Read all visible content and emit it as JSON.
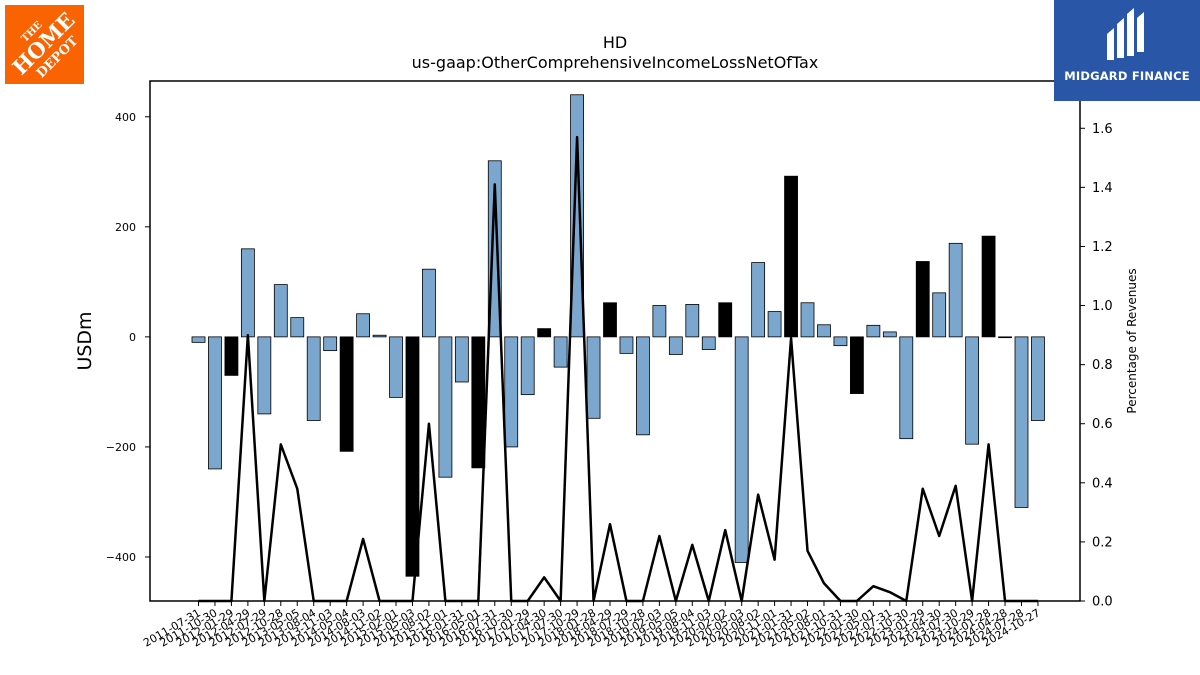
{
  "brand": {
    "left_logo": "THE HOME DEPOT",
    "right_logo": "MIDGARD FINANCE",
    "colors": {
      "home_depot_orange": "#f96302",
      "midgard_blue": "#2a56a8"
    }
  },
  "chart_data": {
    "type": "bar",
    "title": "HD",
    "subtitle": "us-gaap:OtherComprehensiveIncomeLossNetOfTax",
    "ylabel": "USDm",
    "y2label": "Percentage of Revenues",
    "ylim": [
      -480,
      465
    ],
    "y2lim": [
      0,
      1.76
    ],
    "yticks": [
      -400,
      -200,
      0,
      200,
      400
    ],
    "y2ticks": [
      0.0,
      0.2,
      0.4,
      0.6,
      0.8,
      1.0,
      1.2,
      1.4,
      1.6
    ],
    "y2ticks_labels": [
      "0.0",
      "0.2",
      "0.4",
      "0.6",
      "0.8",
      "1.0",
      "1.2",
      "1.4",
      "1.6"
    ],
    "grid": false,
    "colors": {
      "quarter_bar": "#7ba7cf",
      "annual_bar": "#000000",
      "line": "#000000"
    },
    "x_tick_labels": [
      "2011-07-31",
      "2011-10-30",
      "2012-01-29",
      "2012-04-29",
      "2012-07-29",
      "2012-10-28",
      "2013-05-05",
      "2013-08-04",
      "2013-11-03",
      "2014-05-04",
      "2014-08-03",
      "2014-11-02",
      "2015-02-01",
      "2015-05-03",
      "2015-08-02",
      "2015-11-01",
      "2016-01-31",
      "2016-05-01",
      "2016-07-31",
      "2016-10-30",
      "2017-01-29",
      "2017-04-30",
      "2017-07-30",
      "2017-10-29",
      "2018-01-28",
      "2018-04-29",
      "2018-07-29",
      "2018-10-28",
      "2019-02-03",
      "2019-05-05",
      "2019-08-04",
      "2019-11-03",
      "2020-02-02",
      "2020-05-03",
      "2020-08-02",
      "2020-11-01",
      "2021-01-31",
      "2021-05-02",
      "2021-08-01",
      "2021-10-31",
      "2022-01-30",
      "2022-05-01",
      "2022-07-31",
      "2022-10-30",
      "2023-01-29",
      "2023-04-30",
      "2023-07-30",
      "2023-10-29",
      "2024-01-28",
      "2024-04-28",
      "2024-07-28",
      "2024-10-27"
    ],
    "values": [
      -10,
      -240,
      -70,
      160,
      -140,
      95,
      35,
      -152,
      -25,
      -208,
      42,
      3,
      -110,
      -435,
      123,
      -255,
      -82,
      -238,
      320,
      -200,
      -105,
      15,
      -55,
      440,
      -148,
      62,
      -30,
      -178,
      57,
      -32,
      59,
      -23,
      62,
      -410,
      135,
      46,
      292,
      62,
      22,
      -16,
      -103,
      21,
      9,
      -185,
      137,
      80,
      170,
      -195,
      183,
      0,
      -310,
      -152
    ],
    "is_annual": [
      false,
      false,
      true,
      false,
      false,
      false,
      false,
      false,
      false,
      true,
      false,
      false,
      false,
      true,
      false,
      false,
      false,
      true,
      false,
      false,
      false,
      true,
      false,
      false,
      false,
      true,
      false,
      false,
      false,
      false,
      false,
      false,
      true,
      false,
      false,
      false,
      true,
      false,
      false,
      false,
      true,
      false,
      false,
      false,
      true,
      false,
      false,
      false,
      true,
      false,
      false,
      false
    ],
    "pct_of_revenue": [
      0,
      0,
      0,
      0.9,
      0,
      0.53,
      0.38,
      0,
      0,
      0,
      0.21,
      0,
      0,
      0,
      0.6,
      0,
      0,
      0,
      1.41,
      0,
      0,
      0.08,
      0,
      1.57,
      0,
      0.26,
      0,
      0,
      0.22,
      0,
      0.19,
      0,
      0.24,
      0,
      0.36,
      0.14,
      0.89,
      0.17,
      0.06,
      0,
      0,
      0.05,
      0.03,
      0,
      0.38,
      0.22,
      0.39,
      0,
      0.53,
      0,
      0,
      0
    ]
  }
}
